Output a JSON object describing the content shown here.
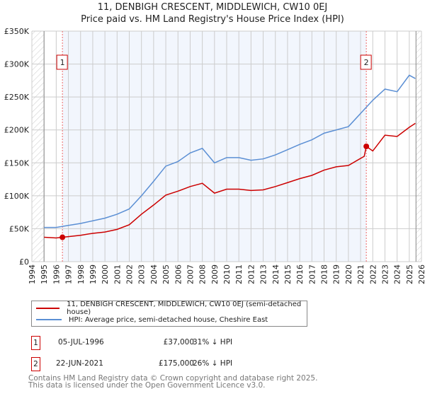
{
  "chart_data": {
    "type": "line",
    "title": "11, DENBIGH CRESCENT, MIDDLEWICH, CW10 0EJ",
    "subtitle": "Price paid vs. HM Land Registry's House Price Index (HPI)",
    "xlim": [
      1994,
      2026
    ],
    "ylim": [
      0,
      350000
    ],
    "x_ticks": [
      "1994",
      "1995",
      "1996",
      "1997",
      "1998",
      "1999",
      "2000",
      "2001",
      "2002",
      "2003",
      "2004",
      "2005",
      "2006",
      "2007",
      "2008",
      "2009",
      "2010",
      "2011",
      "2012",
      "2013",
      "2014",
      "2015",
      "2016",
      "2017",
      "2018",
      "2019",
      "2020",
      "2021",
      "2022",
      "2023",
      "2024",
      "2025",
      "2026"
    ],
    "y_ticks": [
      {
        "v": 0,
        "label": "£0"
      },
      {
        "v": 50000,
        "label": "£50K"
      },
      {
        "v": 100000,
        "label": "£100K"
      },
      {
        "v": 150000,
        "label": "£150K"
      },
      {
        "v": 200000,
        "label": "£200K"
      },
      {
        "v": 250000,
        "label": "£250K"
      },
      {
        "v": 300000,
        "label": "£300K"
      },
      {
        "v": 350000,
        "label": "£350K"
      }
    ],
    "grid": true,
    "series": [
      {
        "name": "11, DENBIGH CRESCENT, MIDDLEWICH, CW10 0EJ (semi-detached house)",
        "color": "#cc0000",
        "x": [
          1995,
          1996,
          1996.5,
          1997,
          1998,
          1999,
          2000,
          2001,
          2002,
          2003,
          2004,
          2005,
          2006,
          2007,
          2008,
          2009,
          2010,
          2011,
          2012,
          2013,
          2014,
          2015,
          2016,
          2017,
          2018,
          2019,
          2020,
          2021.3,
          2021.47,
          2022,
          2023,
          2024,
          2025,
          2025.5
        ],
        "y": [
          37000,
          36000,
          37000,
          38000,
          40000,
          43000,
          45000,
          49000,
          56000,
          72000,
          86000,
          101000,
          107000,
          114000,
          119000,
          104000,
          110000,
          110000,
          108000,
          109000,
          114000,
          120000,
          126000,
          131000,
          139000,
          144000,
          146000,
          160000,
          175000,
          168000,
          192000,
          190000,
          204000,
          210000
        ]
      },
      {
        "name": "HPI: Average price, semi-detached house, Cheshire East",
        "color": "#5b8fd4",
        "x": [
          1995,
          1996,
          1997,
          1998,
          1999,
          2000,
          2001,
          2002,
          2003,
          2004,
          2005,
          2006,
          2007,
          2008,
          2009,
          2010,
          2011,
          2012,
          2013,
          2014,
          2015,
          2016,
          2017,
          2018,
          2019,
          2020,
          2021,
          2022,
          2023,
          2024,
          2025,
          2025.5
        ],
        "y": [
          52000,
          52000,
          55000,
          58000,
          62000,
          66000,
          72000,
          80000,
          100000,
          122000,
          145000,
          152000,
          165000,
          172000,
          150000,
          158000,
          158000,
          154000,
          156000,
          162000,
          170000,
          178000,
          185000,
          195000,
          200000,
          205000,
          225000,
          245000,
          262000,
          258000,
          283000,
          278000
        ]
      }
    ],
    "sales": [
      {
        "n": "1",
        "x": 1996.51,
        "y": 37000
      },
      {
        "n": "2",
        "x": 2021.47,
        "y": 175000
      }
    ],
    "legend": "bottom"
  },
  "table": [
    {
      "n": "1",
      "date": "05-JUL-1996",
      "price": "£37,000",
      "hpi": "31% ↓ HPI"
    },
    {
      "n": "2",
      "date": "22-JUN-2021",
      "price": "£175,000",
      "hpi": "26% ↓ HPI"
    }
  ],
  "footer": [
    "Contains HM Land Registry data © Crown copyright and database right 2025.",
    "This data is licensed under the Open Government Licence v3.0."
  ]
}
